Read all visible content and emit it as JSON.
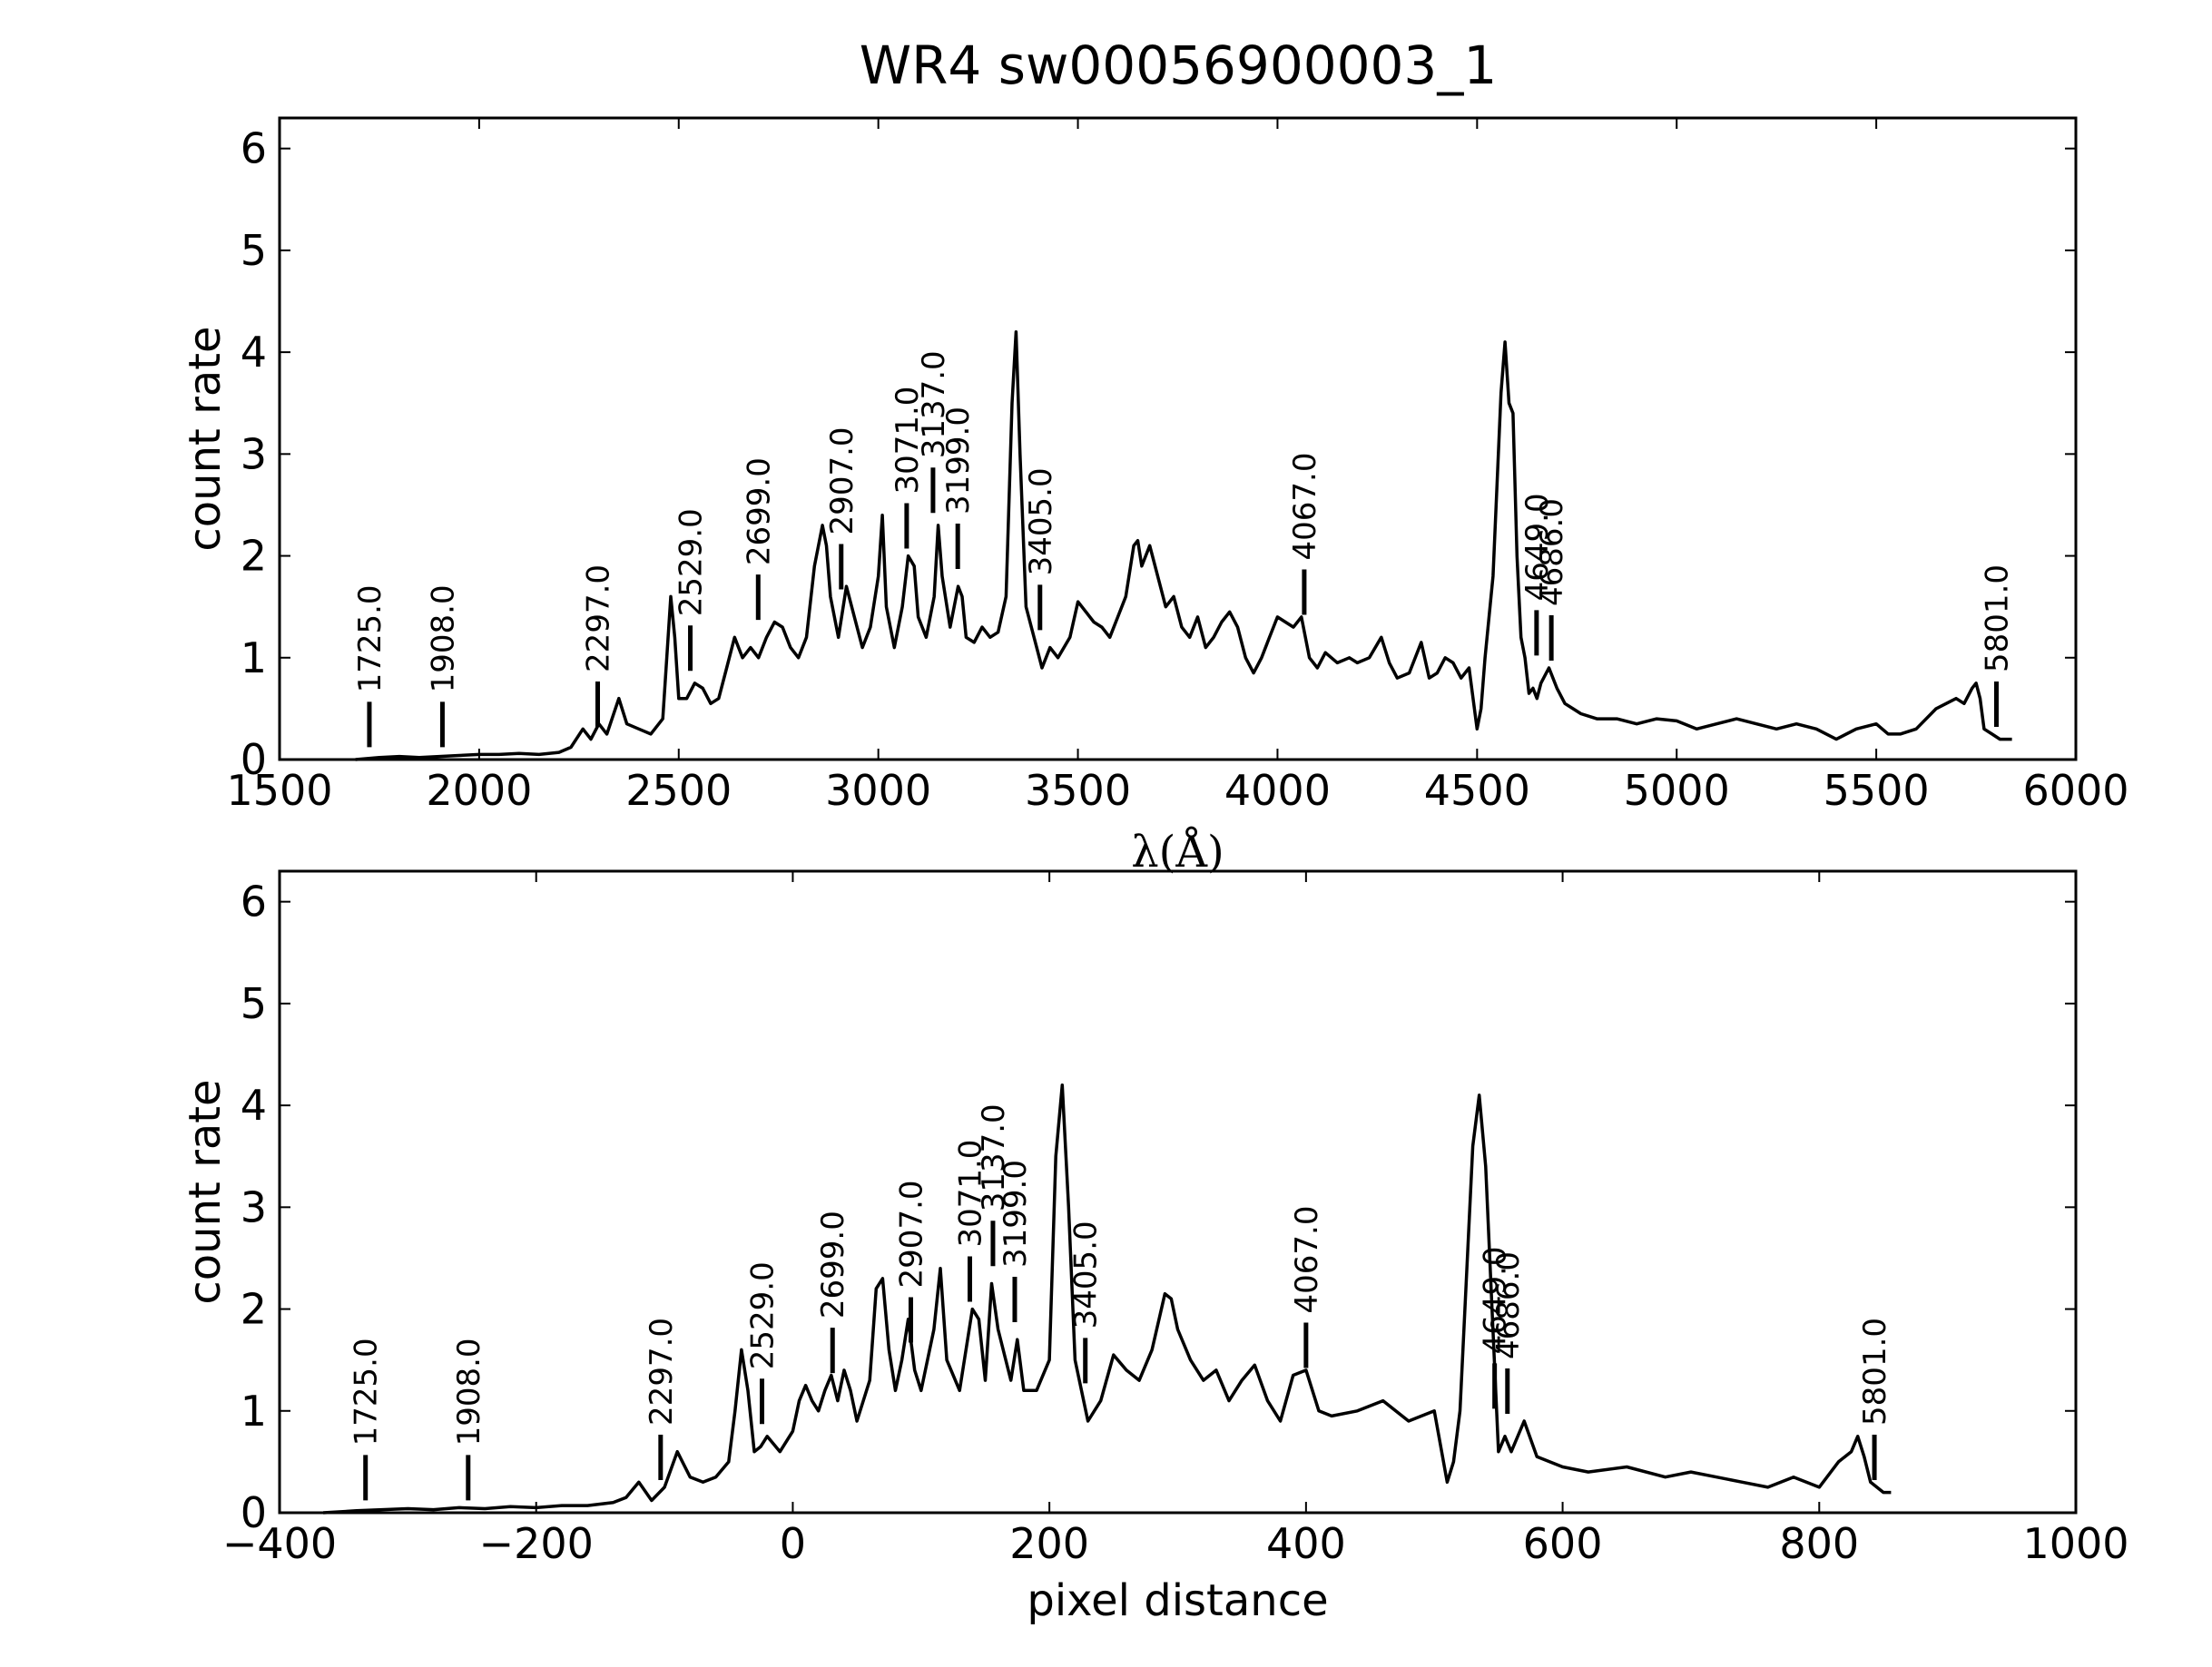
{
  "figure": {
    "title": "WR4  sw00056900003_1"
  },
  "chart_data": [
    {
      "type": "line",
      "title": "WR4  sw00056900003_1",
      "xlabel": "λ(Å)",
      "ylabel": "count rate",
      "xlim": [
        1500,
        6000
      ],
      "ylim": [
        0,
        6.3
      ],
      "x_ticks": [
        1500,
        2000,
        2500,
        3000,
        3500,
        4000,
        4500,
        5000,
        5500,
        6000
      ],
      "x_tick_labels": [
        "1500",
        "2000",
        "2500",
        "3000",
        "3500",
        "4000",
        "4500",
        "5000",
        "5500",
        "6000"
      ],
      "y_ticks": [
        0,
        1,
        2,
        3,
        4,
        5,
        6
      ],
      "y_tick_labels": [
        "0",
        "1",
        "2",
        "3",
        "4",
        "5",
        "6"
      ],
      "grid": false,
      "series": [
        {
          "x": [
            1690,
            1750,
            1800,
            1850,
            1900,
            1950,
            2000,
            2050,
            2100,
            2150,
            2200,
            2230,
            2260,
            2280,
            2300,
            2320,
            2350,
            2370,
            2400,
            2430,
            2460,
            2470,
            2480,
            2490,
            2500,
            2520,
            2540,
            2560,
            2580,
            2600,
            2620,
            2640,
            2650,
            2660,
            2680,
            2700,
            2720,
            2740,
            2760,
            2780,
            2800,
            2820,
            2840,
            2860,
            2870,
            2880,
            2900,
            2920,
            2940,
            2960,
            2980,
            3000,
            3010,
            3020,
            3040,
            3060,
            3075,
            3090,
            3100,
            3120,
            3140,
            3150,
            3160,
            3180,
            3200,
            3210,
            3220,
            3240,
            3260,
            3280,
            3300,
            3320,
            3335,
            3345,
            3355,
            3370,
            3390,
            3410,
            3430,
            3450,
            3480,
            3500,
            3520,
            3540,
            3560,
            3580,
            3600,
            3620,
            3640,
            3650,
            3660,
            3680,
            3700,
            3720,
            3740,
            3760,
            3780,
            3800,
            3820,
            3840,
            3860,
            3880,
            3900,
            3920,
            3940,
            3960,
            3980,
            4000,
            4020,
            4040,
            4060,
            4080,
            4100,
            4120,
            4150,
            4180,
            4200,
            4230,
            4260,
            4280,
            4300,
            4330,
            4360,
            4380,
            4400,
            4420,
            4440,
            4460,
            4480,
            4500,
            4510,
            4520,
            4540,
            4560,
            4570,
            4580,
            4590,
            4600,
            4610,
            4620,
            4630,
            4640,
            4650,
            4660,
            4680,
            4700,
            4720,
            4740,
            4760,
            4800,
            4850,
            4900,
            4950,
            5000,
            5050,
            5100,
            5150,
            5200,
            5250,
            5300,
            5350,
            5400,
            5450,
            5500,
            5530,
            5560,
            5600,
            5650,
            5700,
            5720,
            5740,
            5750,
            5760,
            5770,
            5790,
            5810,
            5840
          ],
          "y": [
            0.0,
            0.02,
            0.03,
            0.02,
            0.03,
            0.04,
            0.05,
            0.05,
            0.06,
            0.05,
            0.07,
            0.12,
            0.3,
            0.2,
            0.35,
            0.25,
            0.6,
            0.35,
            0.3,
            0.25,
            0.4,
            1.0,
            1.6,
            1.2,
            0.6,
            0.6,
            0.75,
            0.7,
            0.55,
            0.6,
            0.9,
            1.2,
            1.1,
            1.0,
            1.1,
            1.0,
            1.2,
            1.35,
            1.3,
            1.1,
            1.0,
            1.2,
            1.9,
            2.3,
            2.1,
            1.6,
            1.2,
            1.7,
            1.4,
            1.1,
            1.3,
            1.8,
            2.4,
            1.5,
            1.1,
            1.5,
            2.0,
            1.9,
            1.4,
            1.2,
            1.6,
            2.3,
            1.8,
            1.3,
            1.7,
            1.6,
            1.2,
            1.15,
            1.3,
            1.2,
            1.25,
            1.6,
            3.5,
            4.2,
            3.0,
            1.5,
            1.2,
            0.9,
            1.1,
            1.0,
            1.2,
            1.55,
            1.45,
            1.35,
            1.3,
            1.2,
            1.4,
            1.6,
            2.1,
            2.15,
            1.9,
            2.1,
            1.8,
            1.5,
            1.6,
            1.3,
            1.2,
            1.4,
            1.1,
            1.2,
            1.35,
            1.45,
            1.3,
            1.0,
            0.85,
            1.0,
            1.2,
            1.4,
            1.35,
            1.3,
            1.4,
            1.0,
            0.9,
            1.05,
            0.95,
            1.0,
            0.95,
            1.0,
            1.2,
            0.95,
            0.8,
            0.85,
            1.15,
            0.8,
            0.85,
            1.0,
            0.95,
            0.8,
            0.9,
            0.3,
            0.5,
            1.0,
            1.8,
            3.6,
            4.1,
            3.5,
            3.4,
            2.0,
            1.2,
            1.0,
            0.65,
            0.7,
            0.6,
            0.75,
            0.9,
            0.7,
            0.55,
            0.5,
            0.45,
            0.4,
            0.4,
            0.35,
            0.4,
            0.38,
            0.3,
            0.35,
            0.4,
            0.35,
            0.3,
            0.35,
            0.3,
            0.2,
            0.3,
            0.35,
            0.25,
            0.25,
            0.3,
            0.5,
            0.6,
            0.55,
            0.7,
            0.75,
            0.6,
            0.3,
            0.25,
            0.2,
            0.2
          ]
        }
      ],
      "line_markers": [
        {
          "label": "1725.0",
          "x": 1725,
          "y": 0.05
        },
        {
          "label": "1908.0",
          "x": 1908,
          "y": 0.05
        },
        {
          "label": "2297.0",
          "x": 2297,
          "y": 0.25
        },
        {
          "label": "2529.0",
          "x": 2529,
          "y": 0.8
        },
        {
          "label": "2699.0",
          "x": 2699,
          "y": 1.3
        },
        {
          "label": "2907.0",
          "x": 2907,
          "y": 1.6
        },
        {
          "label": "3071.0",
          "x": 3071,
          "y": 2.0
        },
        {
          "label": "3137.0",
          "x": 3137,
          "y": 2.35
        },
        {
          "label": "3199.0",
          "x": 3199,
          "y": 1.8
        },
        {
          "label": "3405.0",
          "x": 3405,
          "y": 1.2
        },
        {
          "label": "4067.0",
          "x": 4067,
          "y": 1.35
        },
        {
          "label": "4649.0",
          "x": 4649,
          "y": 0.95
        },
        {
          "label": "4686.0",
          "x": 4686,
          "y": 0.9
        },
        {
          "label": "5801.0",
          "x": 5801,
          "y": 0.25
        }
      ]
    },
    {
      "type": "line",
      "title": "",
      "xlabel": "pixel distance",
      "ylabel": "count rate",
      "xlim": [
        -400,
        1000
      ],
      "ylim": [
        0,
        6.3
      ],
      "x_ticks": [
        -400,
        -200,
        0,
        200,
        400,
        600,
        800,
        1000
      ],
      "x_tick_labels": [
        "−400",
        "−200",
        "0",
        "200",
        "400",
        "600",
        "800",
        "1000"
      ],
      "y_ticks": [
        0,
        1,
        2,
        3,
        4,
        5,
        6
      ],
      "y_tick_labels": [
        "0",
        "1",
        "2",
        "3",
        "4",
        "5",
        "6"
      ],
      "grid": false,
      "series": [
        {
          "x": [
            -366,
            -340,
            -320,
            -300,
            -280,
            -260,
            -240,
            -220,
            -200,
            -180,
            -160,
            -140,
            -130,
            -120,
            -110,
            -100,
            -90,
            -80,
            -70,
            -60,
            -50,
            -45,
            -40,
            -35,
            -30,
            -25,
            -20,
            -10,
            0,
            5,
            10,
            15,
            20,
            25,
            30,
            35,
            40,
            45,
            50,
            60,
            65,
            70,
            75,
            80,
            85,
            90,
            95,
            100,
            110,
            115,
            120,
            130,
            140,
            145,
            150,
            155,
            160,
            170,
            175,
            180,
            190,
            200,
            205,
            210,
            215,
            220,
            230,
            240,
            250,
            260,
            270,
            280,
            290,
            295,
            300,
            310,
            320,
            330,
            340,
            350,
            360,
            370,
            380,
            390,
            400,
            410,
            420,
            440,
            460,
            480,
            500,
            510,
            515,
            520,
            530,
            535,
            540,
            545,
            550,
            555,
            560,
            570,
            580,
            600,
            620,
            650,
            680,
            700,
            720,
            740,
            760,
            780,
            800,
            815,
            825,
            830,
            835,
            840,
            850,
            856
          ],
          "y": [
            0.0,
            0.02,
            0.03,
            0.04,
            0.03,
            0.05,
            0.04,
            0.06,
            0.05,
            0.07,
            0.07,
            0.1,
            0.15,
            0.3,
            0.12,
            0.25,
            0.6,
            0.35,
            0.3,
            0.35,
            0.5,
            1.0,
            1.6,
            1.2,
            0.6,
            0.65,
            0.75,
            0.6,
            0.8,
            1.1,
            1.25,
            1.1,
            1.0,
            1.2,
            1.35,
            1.1,
            1.4,
            1.2,
            0.9,
            1.3,
            2.2,
            2.3,
            1.6,
            1.2,
            1.5,
            1.9,
            1.4,
            1.2,
            1.8,
            2.4,
            1.5,
            1.2,
            2.0,
            1.9,
            1.3,
            2.25,
            1.8,
            1.3,
            1.7,
            1.2,
            1.2,
            1.5,
            3.5,
            4.2,
            3.0,
            1.5,
            0.9,
            1.1,
            1.55,
            1.4,
            1.3,
            1.6,
            2.15,
            2.1,
            1.8,
            1.5,
            1.3,
            1.4,
            1.1,
            1.3,
            1.45,
            1.1,
            0.9,
            1.35,
            1.4,
            1.0,
            0.95,
            1.0,
            1.1,
            0.9,
            1.0,
            0.3,
            0.5,
            1.0,
            3.6,
            4.1,
            3.4,
            2.0,
            0.6,
            0.75,
            0.6,
            0.9,
            0.55,
            0.45,
            0.4,
            0.45,
            0.35,
            0.4,
            0.35,
            0.3,
            0.25,
            0.35,
            0.25,
            0.5,
            0.6,
            0.75,
            0.55,
            0.3,
            0.2,
            0.2
          ]
        }
      ],
      "line_markers": [
        {
          "label": "1725.0",
          "x": -333,
          "y": 0.05
        },
        {
          "label": "1908.0",
          "x": -253,
          "y": 0.05
        },
        {
          "label": "2297.0",
          "x": -103,
          "y": 0.25
        },
        {
          "label": "2529.0",
          "x": -24,
          "y": 0.8
        },
        {
          "label": "2699.0",
          "x": 31,
          "y": 1.3
        },
        {
          "label": "2907.0",
          "x": 92,
          "y": 1.6
        },
        {
          "label": "3071.0",
          "x": 138,
          "y": 2.0
        },
        {
          "label": "3137.0",
          "x": 156,
          "y": 2.35
        },
        {
          "label": "3199.0",
          "x": 173,
          "y": 1.8
        },
        {
          "label": "3405.0",
          "x": 228,
          "y": 1.2
        },
        {
          "label": "4067.0",
          "x": 400,
          "y": 1.35
        },
        {
          "label": "4649.0",
          "x": 547,
          "y": 0.95
        },
        {
          "label": "4686.0",
          "x": 557,
          "y": 0.9
        },
        {
          "label": "5801.0",
          "x": 843,
          "y": 0.25
        }
      ]
    }
  ]
}
